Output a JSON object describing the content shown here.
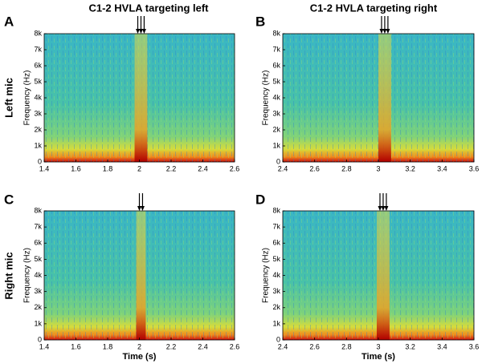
{
  "column_titles": [
    "C1-2 HVLA targeting left",
    "C1-2 HVLA targeting right"
  ],
  "row_labels": [
    "Left mic",
    "Right mic"
  ],
  "chart_data": [
    {
      "type": "spectrogram",
      "panel": "A",
      "ylabel": "Frequency (Hz)",
      "xlim": [
        1.4,
        2.6
      ],
      "xticks": [
        1.4,
        1.6,
        1.8,
        2,
        2.2,
        2.4,
        2.6
      ],
      "ylim": [
        0,
        8000
      ],
      "yticks": [
        0,
        {
          "value": 1000,
          "label": "1k"
        },
        {
          "value": 2000,
          "label": "2k"
        },
        {
          "value": 3000,
          "label": "3k"
        },
        {
          "value": 4000,
          "label": "4k"
        },
        {
          "value": 5000,
          "label": "5k"
        },
        {
          "value": 6000,
          "label": "6k"
        },
        {
          "value": 7000,
          "label": "7k"
        },
        {
          "value": 8000,
          "label": "8k"
        }
      ],
      "arrows": [
        1.99,
        2.01,
        2.03
      ]
    },
    {
      "type": "spectrogram",
      "panel": "B",
      "ylabel": "Frequency (Hz)",
      "xlim": [
        2.4,
        3.6
      ],
      "xticks": [
        2.4,
        2.6,
        2.8,
        3,
        3.2,
        3.4,
        3.6
      ],
      "ylim": [
        0,
        8000
      ],
      "yticks": [
        0,
        {
          "value": 1000,
          "label": "1k"
        },
        {
          "value": 2000,
          "label": "2k"
        },
        {
          "value": 3000,
          "label": "3k"
        },
        {
          "value": 4000,
          "label": "4k"
        },
        {
          "value": 5000,
          "label": "5k"
        },
        {
          "value": 6000,
          "label": "6k"
        },
        {
          "value": 7000,
          "label": "7k"
        },
        {
          "value": 8000,
          "label": "8k"
        }
      ],
      "arrows": [
        3.02,
        3.04,
        3.06
      ]
    },
    {
      "type": "spectrogram",
      "panel": "C",
      "ylabel": "Frequency (Hz)",
      "xlabel": "Time (s)",
      "xlim": [
        1.4,
        2.6
      ],
      "xticks": [
        1.4,
        1.6,
        1.8,
        2,
        2.2,
        2.4,
        2.6
      ],
      "ylim": [
        0,
        8000
      ],
      "yticks": [
        0,
        {
          "value": 1000,
          "label": "1k"
        },
        {
          "value": 2000,
          "label": "2k"
        },
        {
          "value": 3000,
          "label": "3k"
        },
        {
          "value": 4000,
          "label": "4k"
        },
        {
          "value": 5000,
          "label": "5k"
        },
        {
          "value": 6000,
          "label": "6k"
        },
        {
          "value": 7000,
          "label": "7k"
        },
        {
          "value": 8000,
          "label": "8k"
        }
      ],
      "arrows": [
        2.0,
        2.02
      ]
    },
    {
      "type": "spectrogram",
      "panel": "D",
      "ylabel": "Frequency (Hz)",
      "xlabel": "Time (s)",
      "xlim": [
        2.4,
        3.6
      ],
      "xticks": [
        2.4,
        2.6,
        2.8,
        3,
        3.2,
        3.4,
        3.6
      ],
      "ylim": [
        0,
        8000
      ],
      "yticks": [
        0,
        {
          "value": 1000,
          "label": "1k"
        },
        {
          "value": 2000,
          "label": "2k"
        },
        {
          "value": 3000,
          "label": "3k"
        },
        {
          "value": 4000,
          "label": "4k"
        },
        {
          "value": 5000,
          "label": "5k"
        },
        {
          "value": 6000,
          "label": "6k"
        },
        {
          "value": 7000,
          "label": "7k"
        },
        {
          "value": 8000,
          "label": "8k"
        }
      ],
      "arrows": [
        3.01,
        3.03,
        3.05
      ]
    }
  ]
}
